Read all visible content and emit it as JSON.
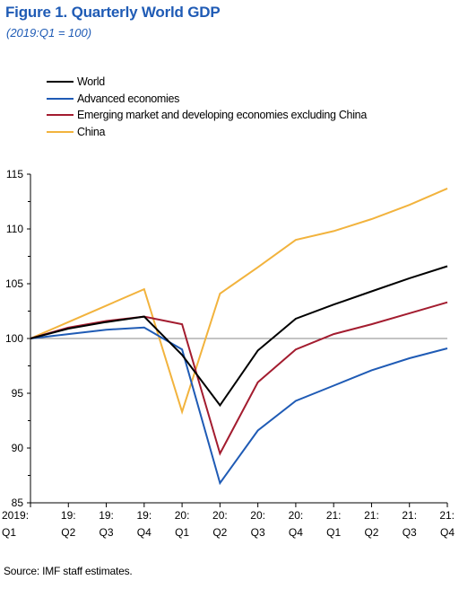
{
  "title": "Figure 1. Quarterly World GDP",
  "subtitle": "(2019:Q1 = 100)",
  "source": "Source: IMF staff estimates.",
  "colors": {
    "title": "#1f5bb5"
  },
  "chart_data": {
    "type": "line",
    "title": "Figure 1. Quarterly World GDP",
    "subtitle": "(2019:Q1 = 100)",
    "xlabel": "",
    "ylabel": "",
    "categories": [
      [
        "2019:",
        "Q1"
      ],
      [
        "19:",
        "Q2"
      ],
      [
        "19:",
        "Q3"
      ],
      [
        "19:",
        "Q4"
      ],
      [
        "20:",
        "Q1"
      ],
      [
        "20:",
        "Q2"
      ],
      [
        "20:",
        "Q3"
      ],
      [
        "20:",
        "Q4"
      ],
      [
        "21:",
        "Q1"
      ],
      [
        "21:",
        "Q2"
      ],
      [
        "21:",
        "Q3"
      ],
      [
        "21:",
        "Q4"
      ]
    ],
    "ylim": [
      85,
      115
    ],
    "yticks": [
      85,
      90,
      95,
      100,
      105,
      110,
      115
    ],
    "reference_line": 100,
    "legend_position": "top-left",
    "grid": false,
    "series": [
      {
        "name": "World",
        "color": "#000000",
        "values": [
          100,
          100.9,
          101.5,
          102.0,
          98.5,
          93.9,
          98.9,
          101.8,
          103.1,
          104.3,
          105.5,
          106.6
        ]
      },
      {
        "name": "Advanced economies",
        "color": "#1f5bb5",
        "values": [
          100,
          100.4,
          100.8,
          101.0,
          99.0,
          86.8,
          91.6,
          94.3,
          95.7,
          97.1,
          98.2,
          99.1
        ]
      },
      {
        "name": "Emerging market and developing economies excluding China",
        "color": "#a31c2f",
        "values": [
          100,
          101.0,
          101.6,
          102.0,
          101.3,
          89.5,
          96.0,
          99.0,
          100.4,
          101.3,
          102.3,
          103.3
        ]
      },
      {
        "name": "China",
        "color": "#f2b33d",
        "values": [
          100,
          101.5,
          103.0,
          104.5,
          93.3,
          104.1,
          106.5,
          109.0,
          109.8,
          110.9,
          112.2,
          113.7
        ]
      }
    ]
  }
}
